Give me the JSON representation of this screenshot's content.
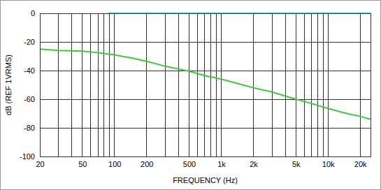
{
  "chart_data": {
    "type": "line",
    "xlabel": "FREQUENCY (Hz)",
    "ylabel": "dB (REF 1VRMS)",
    "log": "x",
    "grid": true,
    "xlim": [
      20,
      25000
    ],
    "xticks": [
      20,
      50,
      100,
      200,
      500,
      {
        "value": 1000,
        "label": "1k"
      },
      {
        "value": 2000,
        "label": "2k"
      },
      {
        "value": 5000,
        "label": "5k"
      },
      {
        "value": 10000,
        "label": "10k"
      },
      {
        "value": 20000,
        "label": "20k"
      }
    ],
    "ylim": [
      -100,
      0
    ],
    "yticks": [
      -100,
      -80,
      -60,
      -40,
      -20,
      0
    ],
    "series": [
      {
        "color": "#3fc6d6",
        "x": [
          87,
          25000
        ],
        "values": [
          0,
          0
        ]
      },
      {
        "color": "#3ec83e",
        "x": [
          20,
          30,
          50,
          70,
          100,
          150,
          200,
          300,
          500,
          700,
          1000,
          1500,
          2000,
          3000,
          5000,
          7000,
          10000,
          15000,
          20000,
          25000
        ],
        "values": [
          -25,
          -26,
          -26.5,
          -27.5,
          -29,
          -31.5,
          -33.5,
          -37,
          -40.5,
          -43.5,
          -46,
          -49.5,
          -52,
          -55,
          -60,
          -63,
          -66.5,
          -70,
          -72,
          -74
        ]
      }
    ]
  }
}
